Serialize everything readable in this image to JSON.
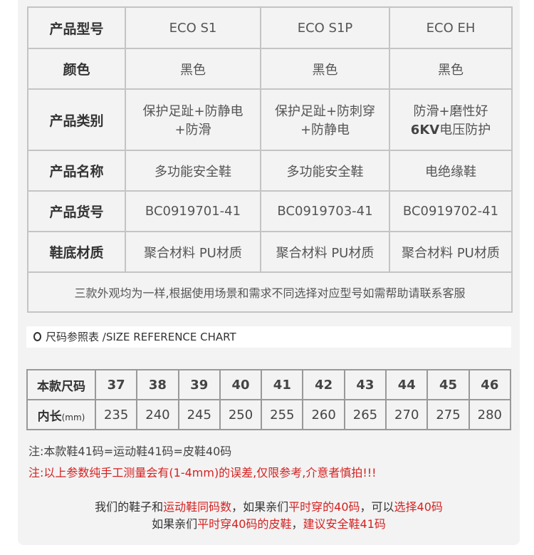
{
  "spec_table": {
    "rows": [
      {
        "label": "产品型号",
        "values": [
          "ECO S1",
          "ECO S1P",
          "ECO EH"
        ]
      },
      {
        "label": "颜色",
        "values": [
          "黑色",
          "黑色",
          "黑色"
        ]
      },
      {
        "label": "产品类别",
        "values": [
          [
            "保护足趾+防静电",
            "+防滑"
          ],
          [
            "保护足趾+防刺穿",
            "+防静电"
          ],
          [
            "防滑+磨性好",
            "6KV",
            "电压防护"
          ]
        ]
      },
      {
        "label": "产品名称",
        "values": [
          "多功能安全鞋",
          "多功能安全鞋",
          "电绝缘鞋"
        ]
      },
      {
        "label": "产品货号",
        "values": [
          "BC0919701-41",
          "BC0919703-41",
          "BC0919702-41"
        ]
      },
      {
        "label": "鞋底材质",
        "values": [
          "聚合材料 PU材质",
          "聚合材料 PU材质",
          "聚合材料 PU材质"
        ]
      }
    ],
    "note": "三款外观均为一样,根据使用场景和需求不同选择对应型号如需帮助请联系客服"
  },
  "size_header": {
    "cn": "尺码参照表 /",
    "en": "SIZE REFERENCE CHART"
  },
  "size_table": {
    "size_label": "本款尺码",
    "length_label": "内长",
    "length_unit": "(mm)",
    "sizes": [
      "37",
      "38",
      "39",
      "40",
      "41",
      "42",
      "43",
      "44",
      "45",
      "46"
    ],
    "lengths": [
      "235",
      "240",
      "245",
      "250",
      "255",
      "260",
      "265",
      "270",
      "275",
      "280"
    ]
  },
  "notes": {
    "n1": "注:本款鞋41码=运动鞋41码=皮鞋40码",
    "n2": "注:以上参数纯手工测量会有(1-4mm)的误差,仅限参考,介意者慎拍!!!",
    "l1": [
      "我们的鞋子和",
      "运动鞋同码数",
      "，如果亲们",
      "平时穿的40码",
      "，可以",
      "选择40码"
    ],
    "l2": [
      "如果亲们",
      "平时穿40码的皮鞋",
      "，",
      "建议安全鞋41码"
    ]
  },
  "colors": {
    "accent": "#d42222",
    "panel": "#f3f3f3"
  }
}
